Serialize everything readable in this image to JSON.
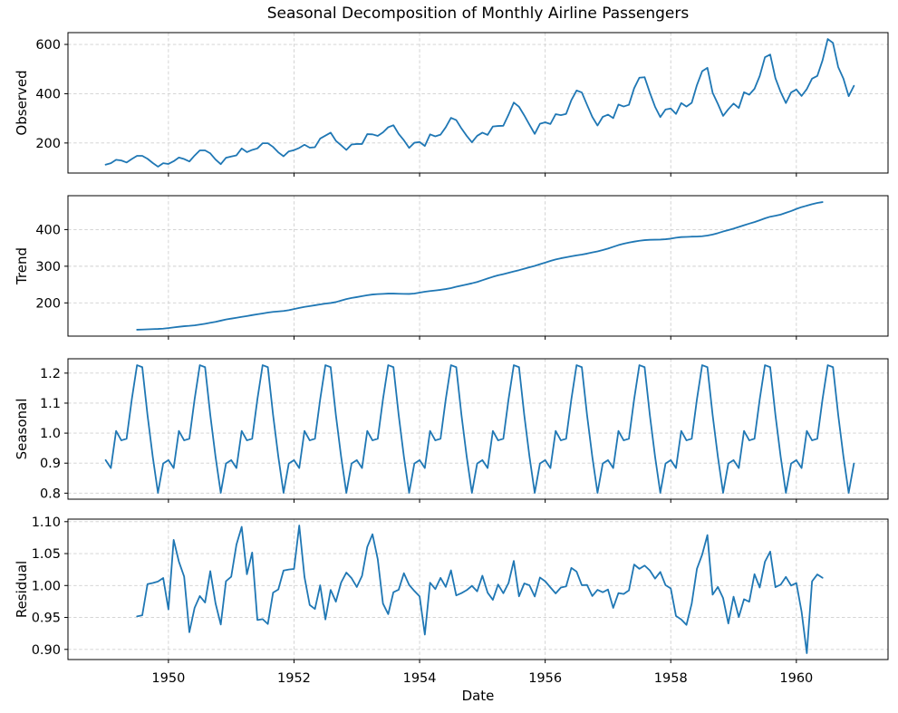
{
  "chart_data": {
    "type": "line",
    "title": "Seasonal Decomposition of Monthly Airline Passengers",
    "xlabel": "Date",
    "line_color": "#1f77b4",
    "grid_color": "#cfcfcf",
    "grid_style": "dashed",
    "legend": "none",
    "start_year": 1949,
    "n_months": 144,
    "x_range": [
      1948.4,
      1961.46
    ],
    "x_ticks": [
      1950,
      1952,
      1954,
      1956,
      1958,
      1960
    ],
    "x_tick_labels": [
      "1950",
      "1952",
      "1954",
      "1956",
      "1958",
      "1960"
    ],
    "observed": [
      112,
      118,
      132,
      129,
      121,
      135,
      148,
      148,
      136,
      119,
      104,
      118,
      115,
      126,
      141,
      135,
      125,
      149,
      170,
      170,
      158,
      133,
      114,
      140,
      145,
      150,
      178,
      163,
      172,
      178,
      199,
      199,
      184,
      162,
      146,
      166,
      171,
      180,
      193,
      181,
      183,
      218,
      230,
      242,
      209,
      191,
      172,
      194,
      196,
      196,
      236,
      235,
      229,
      243,
      264,
      272,
      237,
      211,
      180,
      201,
      204,
      188,
      235,
      227,
      234,
      264,
      302,
      293,
      259,
      229,
      203,
      229,
      242,
      233,
      267,
      269,
      270,
      315,
      364,
      347,
      312,
      274,
      237,
      278,
      284,
      277,
      317,
      313,
      318,
      374,
      413,
      405,
      355,
      306,
      271,
      306,
      315,
      301,
      356,
      348,
      355,
      422,
      465,
      467,
      404,
      347,
      305,
      336,
      340,
      318,
      362,
      348,
      363,
      435,
      491,
      505,
      404,
      359,
      310,
      337,
      360,
      342,
      406,
      396,
      420,
      472,
      548,
      559,
      463,
      407,
      362,
      405,
      417,
      391,
      419,
      461,
      472,
      535,
      622,
      606,
      508,
      461,
      390,
      432
    ],
    "seasonal_factors": [
      0.91023,
      0.883625,
      1.007366,
      0.975906,
      0.981378,
      1.112776,
      1.226556,
      1.219911,
      1.060492,
      0.921757,
      0.801178,
      0.898824
    ],
    "trend_method": "12-month centered moving average (undefined for first and last 6 months)",
    "residual_method": "observed / (trend * seasonal)",
    "trend_range_shown": [
      126.79,
      475.04
    ],
    "residual_range_shown": [
      0.894,
      1.094
    ],
    "y_margin_fraction": 0.05,
    "panels": [
      {
        "series": "observed",
        "ylabel": "Observed",
        "yticks": [
          200,
          400,
          600
        ],
        "ytick_labels": [
          "200",
          "400",
          "600"
        ]
      },
      {
        "series": "trend",
        "ylabel": "Trend",
        "yticks": [
          200,
          300,
          400
        ],
        "ytick_labels": [
          "200",
          "300",
          "400"
        ]
      },
      {
        "series": "seasonal",
        "ylabel": "Seasonal",
        "yticks": [
          0.8,
          0.9,
          1.0,
          1.1,
          1.2
        ],
        "ytick_labels": [
          "0.8",
          "0.9",
          "1.0",
          "1.1",
          "1.2"
        ]
      },
      {
        "series": "residual",
        "ylabel": "Residual",
        "yticks": [
          0.9,
          0.95,
          1.0,
          1.05,
          1.1
        ],
        "ytick_labels": [
          "0.90",
          "0.95",
          "1.00",
          "1.05",
          "1.10"
        ]
      }
    ]
  }
}
